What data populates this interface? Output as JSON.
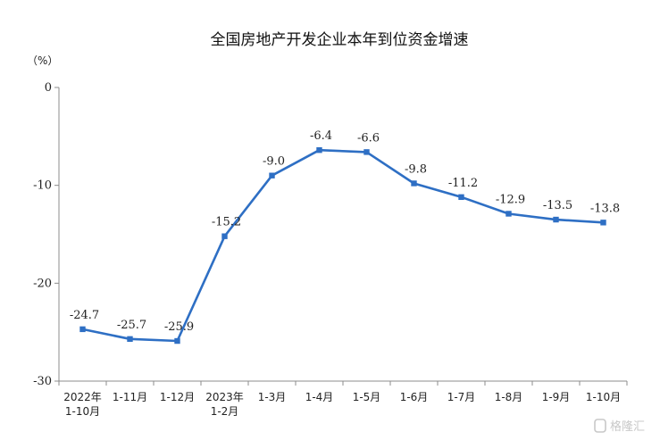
{
  "chart_data": {
    "type": "line",
    "title": "全国房地产开发企业本年到位资金增速",
    "unit_label": "（%）",
    "ylim": [
      -30,
      0
    ],
    "yticks": [
      0,
      -10,
      -20,
      -30
    ],
    "categories": [
      [
        "2022年",
        "1-10月"
      ],
      [
        "1-11月"
      ],
      [
        "1-12月"
      ],
      [
        "2023年",
        "1-2月"
      ],
      [
        "1-3月"
      ],
      [
        "1-4月"
      ],
      [
        "1-5月"
      ],
      [
        "1-6月"
      ],
      [
        "1-7月"
      ],
      [
        "1-8月"
      ],
      [
        "1-9月"
      ],
      [
        "1-10月"
      ]
    ],
    "series": [
      {
        "values": [
          -24.7,
          -25.7,
          -25.9,
          -15.2,
          -9.0,
          -6.4,
          -6.6,
          -9.8,
          -11.2,
          -12.9,
          -13.5,
          -13.8
        ],
        "labels": [
          "-24.7",
          "-25.7",
          "-25.9",
          "-15.2",
          "-9.0",
          "-6.4",
          "-6.6",
          "-9.8",
          "-11.2",
          "-12.9",
          "-13.5",
          "-13.8"
        ]
      }
    ],
    "line_color": "#2e6fc4",
    "axis_color": "#8c8c8c",
    "grid": false,
    "legend": "none"
  },
  "watermark": {
    "icon": "g-logo-icon",
    "text": "格隆汇"
  }
}
